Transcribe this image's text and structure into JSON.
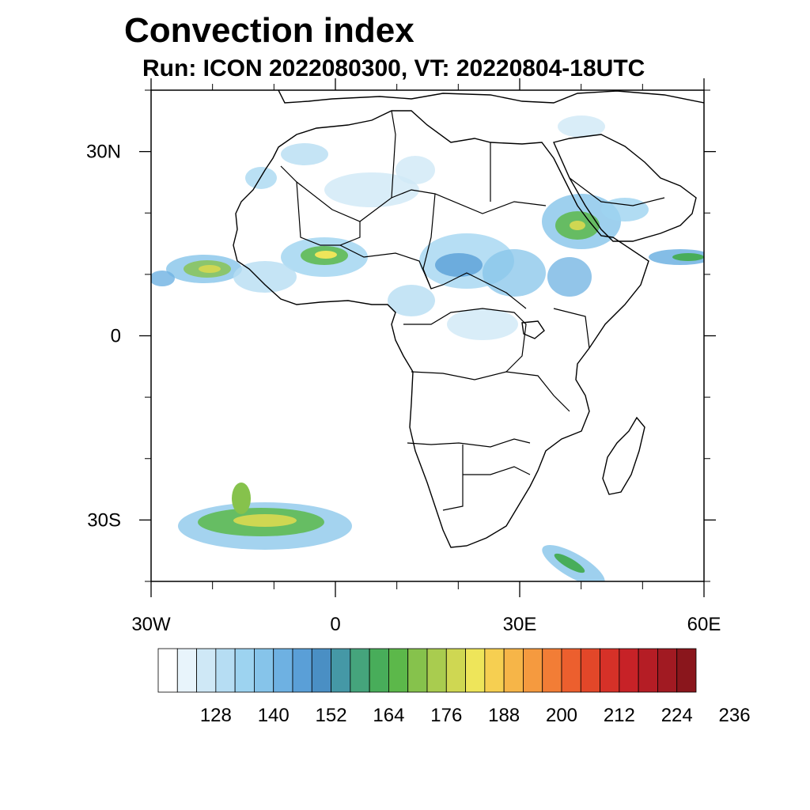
{
  "title": "Convection index",
  "subtitle": "Run: ICON 2022080300,  VT: 20220804-18UTC",
  "map": {
    "region": "Africa",
    "lon_range": [
      -30,
      60
    ],
    "lat_range": [
      -40,
      40
    ],
    "lat_ticks": [
      {
        "value": 30,
        "label": "30N"
      },
      {
        "value": 0,
        "label": "0"
      },
      {
        "value": -30,
        "label": "30S"
      }
    ],
    "lon_ticks": [
      {
        "value": -30,
        "label": "30W"
      },
      {
        "value": 0,
        "label": "0"
      },
      {
        "value": 30,
        "label": "30E"
      },
      {
        "value": 60,
        "label": "60E"
      }
    ],
    "minor_lat_ticks": [
      40,
      20,
      10,
      -10,
      -20,
      -40
    ],
    "minor_lon_ticks": [
      -20,
      -10,
      10,
      20,
      40,
      50
    ]
  },
  "colorbar": {
    "labels": [
      "128",
      "140",
      "152",
      "164",
      "176",
      "188",
      "200",
      "212",
      "224",
      "236"
    ],
    "colors": [
      "#ffffff",
      "#e8f4fb",
      "#cfe8f6",
      "#b6ddf3",
      "#9dd3f0",
      "#86c4ea",
      "#6eb1e2",
      "#5a9fd7",
      "#4a8fc4",
      "#4598a6",
      "#45a47c",
      "#48ad5a",
      "#5cb84a",
      "#86c24c",
      "#a9cc4f",
      "#cfd752",
      "#eee55a",
      "#f6cf51",
      "#f6b548",
      "#f59a3f",
      "#f27d36",
      "#ec5f2e",
      "#e24729",
      "#d63128",
      "#c72227",
      "#b51d25",
      "#a11a22",
      "#8a161c"
    ]
  }
}
